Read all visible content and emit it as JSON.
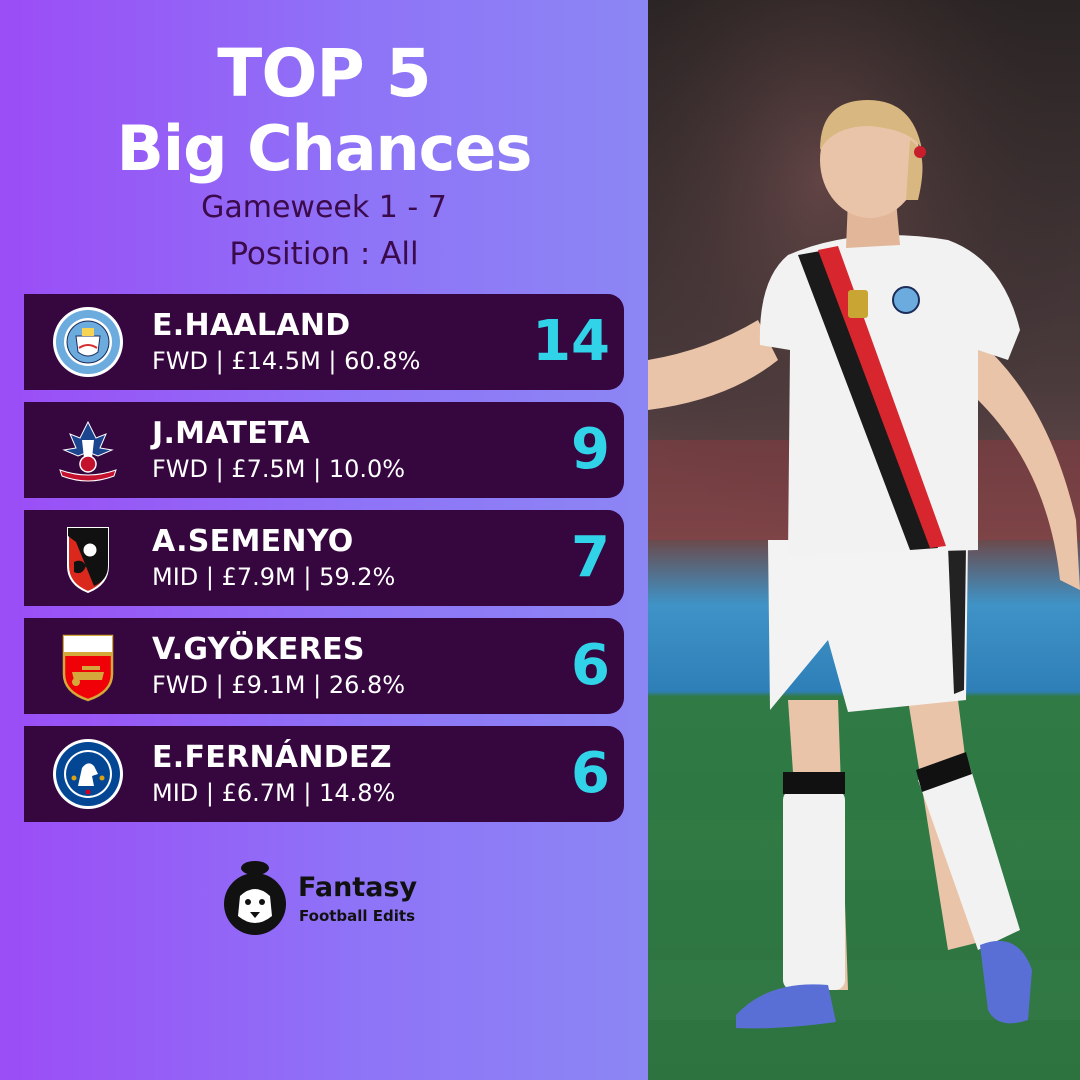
{
  "header": {
    "title_line1": "TOP 5",
    "title_line2": "Big Chances",
    "gameweek": "Gameweek 1 - 7",
    "position": "Position : All"
  },
  "players": [
    {
      "name": "E.HAALAND",
      "position": "FWD",
      "price": "£14.5M",
      "ownership": "60.8%",
      "value": "14",
      "badge": "manchester-city-badge-icon"
    },
    {
      "name": "J.MATETA",
      "position": "FWD",
      "price": "£7.5M",
      "ownership": "10.0%",
      "value": "9",
      "badge": "crystal-palace-badge-icon"
    },
    {
      "name": "A.SEMENYO",
      "position": "MID",
      "price": "£7.9M",
      "ownership": "59.2%",
      "value": "7",
      "badge": "bournemouth-badge-icon"
    },
    {
      "name": "V.GYÖKERES",
      "position": "FWD",
      "price": "£9.1M",
      "ownership": "26.8%",
      "value": "6",
      "badge": "arsenal-badge-icon"
    },
    {
      "name": "E.FERNÁNDEZ",
      "position": "MID",
      "price": "£6.7M",
      "ownership": "14.8%",
      "value": "6",
      "badge": "chelsea-badge-icon"
    }
  ],
  "separator": " | ",
  "logo": {
    "line1": "Fantasy",
    "line2": "Football Edits"
  },
  "colors": {
    "accent": "#31d3e8",
    "row_bg": "#36063f",
    "subtitle": "#3b0a4a"
  }
}
